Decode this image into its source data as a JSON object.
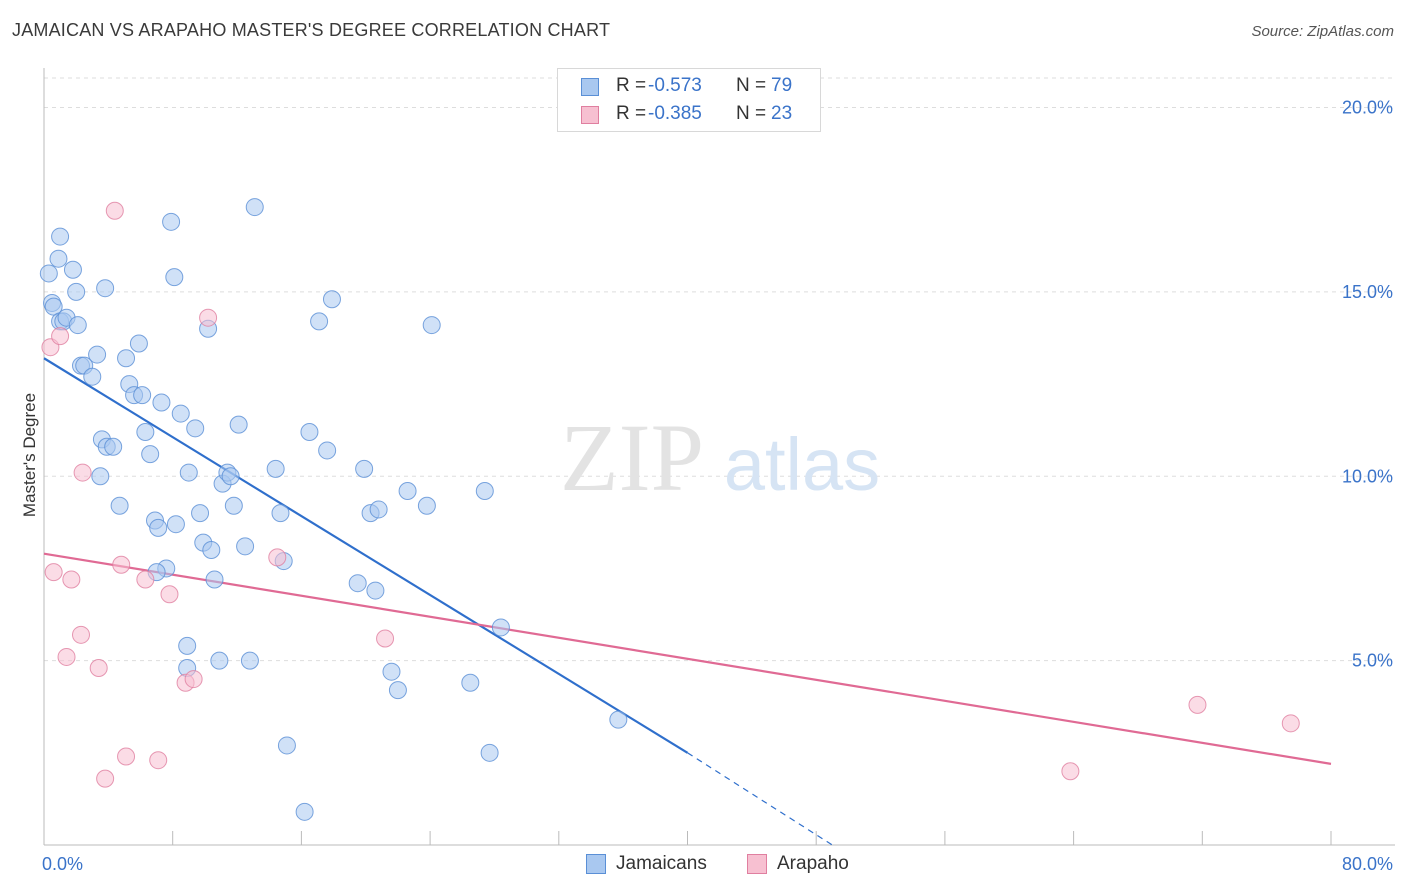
{
  "title": "JAMAICAN VS ARAPAHO MASTER'S DEGREE CORRELATION CHART",
  "source": "Source: ZipAtlas.com",
  "watermark": {
    "zip": "ZIP",
    "atlas": "atlas"
  },
  "colors": {
    "jamaican_fill": "#a9c8f0",
    "jamaican_stroke": "#5a8fd6",
    "jamaican_line": "#2f6fcc",
    "arapaho_fill": "#f7c0d1",
    "arapaho_stroke": "#e07fa0",
    "arapaho_line": "#e06a94",
    "tick_text": "#3a73c9",
    "grid": "#dddddd"
  },
  "legend": {
    "rows": [
      {
        "r_label": "R =",
        "r_value": "-0.573",
        "n_label": "N =",
        "n_value": "79"
      },
      {
        "r_label": "R =",
        "r_value": "-0.385",
        "n_label": "N =",
        "n_value": "23"
      }
    ]
  },
  "bottom_legend": {
    "jamaicans": "Jamaicans",
    "arapaho": "Arapaho"
  },
  "chart_data": {
    "type": "scatter",
    "title": "JAMAICAN VS ARAPAHO MASTER'S DEGREE CORRELATION CHART",
    "xlabel": "",
    "ylabel": "Master's Degree",
    "xlim": [
      0,
      80
    ],
    "ylim": [
      0,
      20.8
    ],
    "x_tick_labels": [
      {
        "value": 0,
        "label": "0.0%"
      },
      {
        "value": 80,
        "label": "80.0%"
      }
    ],
    "y_tick_labels": [
      {
        "value": 5,
        "label": "5.0%"
      },
      {
        "value": 10,
        "label": "10.0%"
      },
      {
        "value": 15,
        "label": "15.0%"
      },
      {
        "value": 20,
        "label": "20.0%"
      }
    ],
    "x_minor_ticks": [
      0,
      8,
      16,
      24,
      32,
      40,
      48,
      56,
      64,
      72,
      80
    ],
    "grid": true,
    "series": [
      {
        "name": "Jamaicans",
        "points": [
          [
            0.3,
            15.5
          ],
          [
            0.5,
            14.7
          ],
          [
            0.6,
            14.6
          ],
          [
            0.9,
            15.9
          ],
          [
            1.0,
            14.2
          ],
          [
            1.2,
            14.2
          ],
          [
            1.4,
            14.3
          ],
          [
            1.8,
            15.6
          ],
          [
            2.0,
            15.0
          ],
          [
            1.0,
            16.5
          ],
          [
            2.1,
            14.1
          ],
          [
            2.3,
            13.0
          ],
          [
            2.5,
            13.0
          ],
          [
            3.0,
            12.7
          ],
          [
            3.3,
            13.3
          ],
          [
            3.8,
            15.1
          ],
          [
            3.6,
            11.0
          ],
          [
            3.9,
            10.8
          ],
          [
            4.3,
            10.8
          ],
          [
            3.5,
            10.0
          ],
          [
            4.7,
            9.2
          ],
          [
            5.1,
            13.2
          ],
          [
            5.3,
            12.5
          ],
          [
            5.6,
            12.2
          ],
          [
            5.9,
            13.6
          ],
          [
            6.1,
            12.2
          ],
          [
            6.3,
            11.2
          ],
          [
            6.6,
            10.6
          ],
          [
            6.9,
            8.8
          ],
          [
            7.1,
            8.6
          ],
          [
            7.3,
            12.0
          ],
          [
            7.6,
            7.5
          ],
          [
            7.0,
            7.4
          ],
          [
            7.9,
            16.9
          ],
          [
            8.1,
            15.4
          ],
          [
            8.2,
            8.7
          ],
          [
            8.5,
            11.7
          ],
          [
            9.4,
            11.3
          ],
          [
            9.0,
            10.1
          ],
          [
            9.7,
            9.0
          ],
          [
            9.9,
            8.2
          ],
          [
            10.2,
            14.0
          ],
          [
            10.4,
            8.0
          ],
          [
            10.6,
            7.2
          ],
          [
            10.9,
            5.0
          ],
          [
            11.1,
            9.8
          ],
          [
            11.4,
            10.1
          ],
          [
            11.6,
            10.0
          ],
          [
            11.8,
            9.2
          ],
          [
            12.1,
            11.4
          ],
          [
            12.5,
            8.1
          ],
          [
            12.8,
            5.0
          ],
          [
            13.1,
            17.3
          ],
          [
            14.4,
            10.2
          ],
          [
            14.7,
            9.0
          ],
          [
            14.9,
            7.7
          ],
          [
            15.1,
            2.7
          ],
          [
            16.2,
            0.9
          ],
          [
            16.5,
            11.2
          ],
          [
            17.1,
            14.2
          ],
          [
            17.6,
            10.7
          ],
          [
            17.9,
            14.8
          ],
          [
            19.5,
            7.1
          ],
          [
            19.9,
            10.2
          ],
          [
            20.3,
            9.0
          ],
          [
            20.6,
            6.9
          ],
          [
            20.8,
            9.1
          ],
          [
            21.6,
            4.7
          ],
          [
            22.0,
            4.2
          ],
          [
            22.6,
            9.6
          ],
          [
            23.8,
            9.2
          ],
          [
            24.1,
            14.1
          ],
          [
            8.9,
            5.4
          ],
          [
            8.9,
            4.8
          ],
          [
            26.5,
            4.4
          ],
          [
            27.4,
            9.6
          ],
          [
            27.7,
            2.5
          ],
          [
            28.4,
            5.9
          ],
          [
            35.7,
            3.4
          ]
        ],
        "trendline": {
          "x1": 0,
          "y1": 13.2,
          "x2": 40,
          "y2": 2.5,
          "dashed_to": {
            "x": 49,
            "y": 0
          }
        }
      },
      {
        "name": "Arapaho",
        "points": [
          [
            0.4,
            13.5
          ],
          [
            0.6,
            7.4
          ],
          [
            1.0,
            13.8
          ],
          [
            1.4,
            5.1
          ],
          [
            1.7,
            7.2
          ],
          [
            2.4,
            10.1
          ],
          [
            2.3,
            5.7
          ],
          [
            3.4,
            4.8
          ],
          [
            3.8,
            1.8
          ],
          [
            4.4,
            17.2
          ],
          [
            4.8,
            7.6
          ],
          [
            5.1,
            2.4
          ],
          [
            6.3,
            7.2
          ],
          [
            7.1,
            2.3
          ],
          [
            7.8,
            6.8
          ],
          [
            8.8,
            4.4
          ],
          [
            9.3,
            4.5
          ],
          [
            10.2,
            14.3
          ],
          [
            14.5,
            7.8
          ],
          [
            21.2,
            5.6
          ],
          [
            63.8,
            2.0
          ],
          [
            71.7,
            3.8
          ],
          [
            77.5,
            3.3
          ]
        ],
        "trendline": {
          "x1": 0,
          "y1": 7.9,
          "x2": 80,
          "y2": 2.2
        }
      }
    ]
  }
}
